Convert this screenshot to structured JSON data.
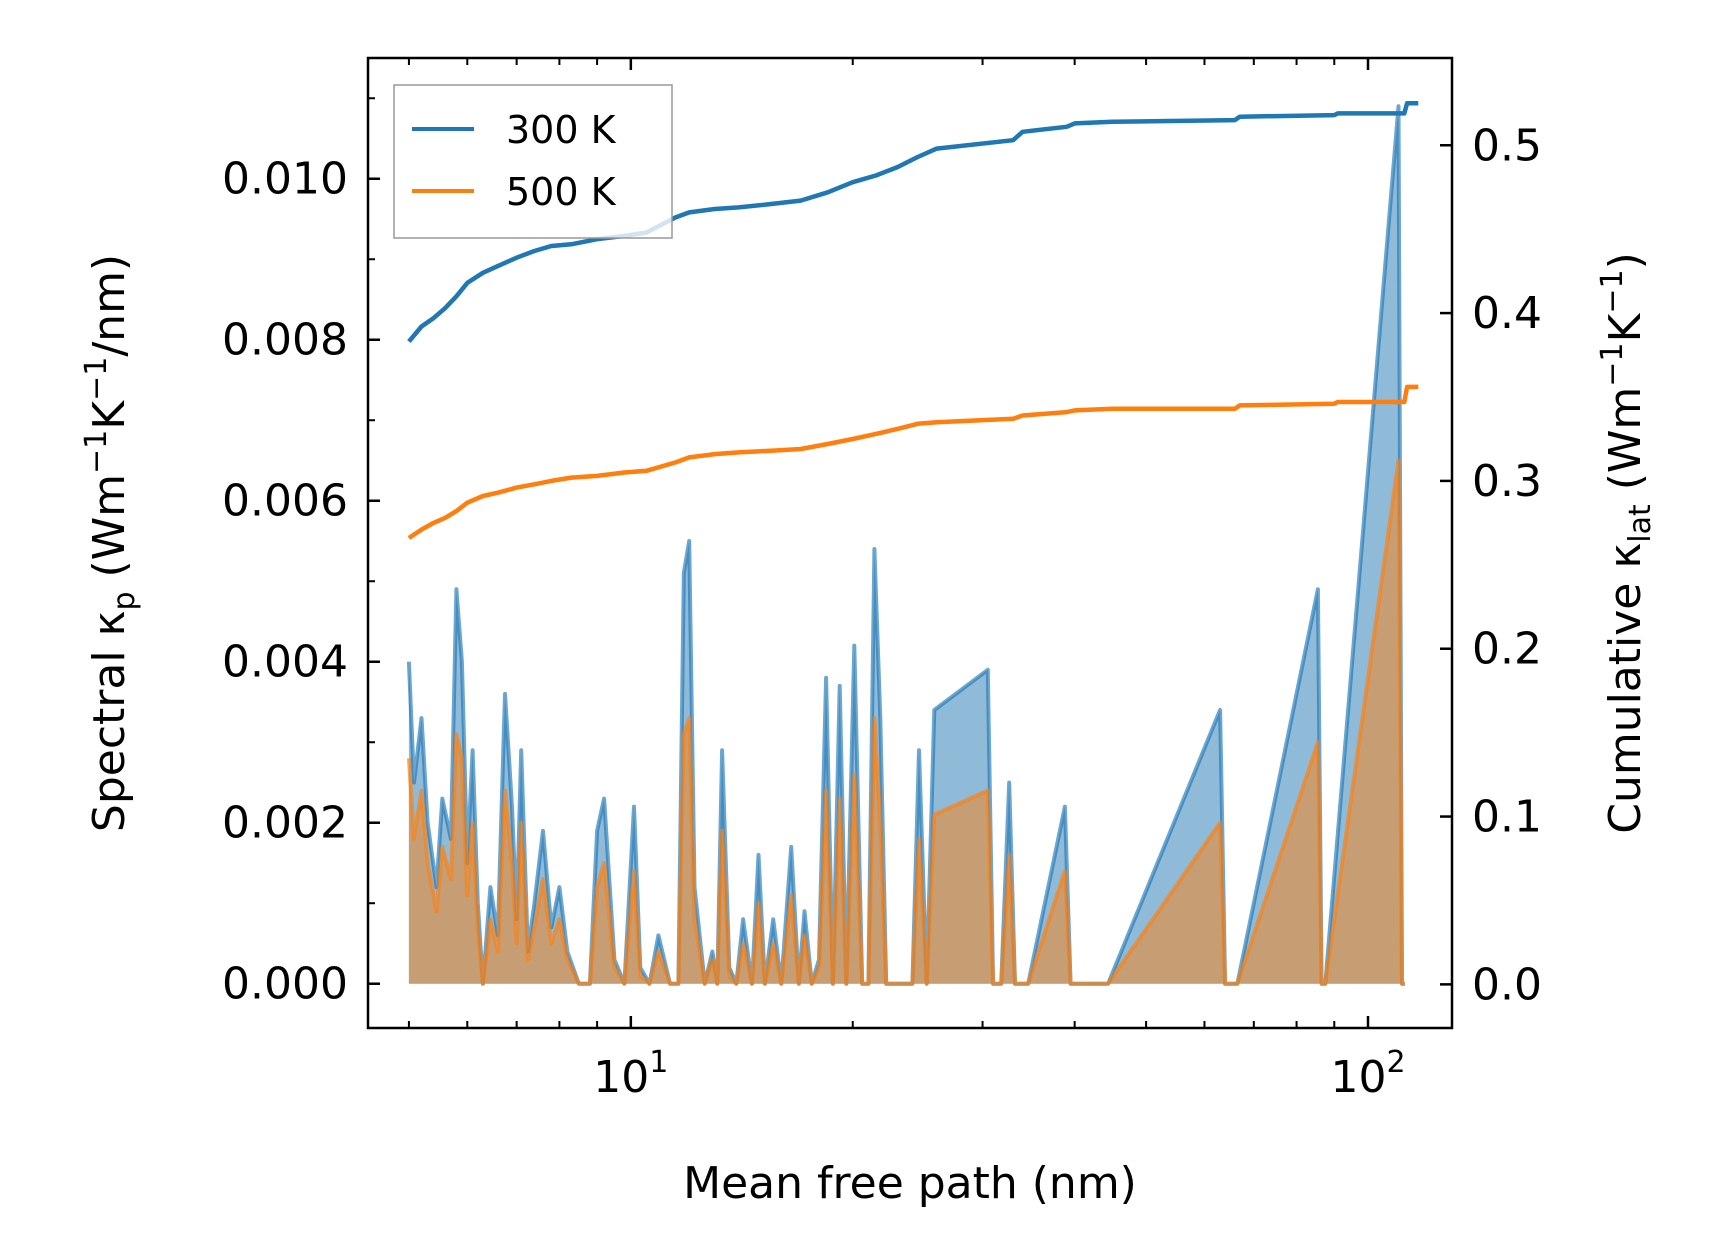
{
  "chart_data": {
    "type": "line",
    "xscale": "log",
    "xlabel": "Mean free path (nm)",
    "xlim": [
      4.4,
      130
    ],
    "x_ticks": [
      {
        "value": 10,
        "base": "10",
        "exp": "1"
      },
      {
        "value": 100,
        "base": "10",
        "exp": "2"
      }
    ],
    "ylabel_left": {
      "pre": "Spectral κ",
      "sub": "p",
      "mid": " (Wm",
      "sup1": "−1",
      "k": "K",
      "sup2": "−1",
      "post": "/nm)"
    },
    "ylim_left": [
      -0.00055,
      0.0115
    ],
    "yticks_left": [
      {
        "value": 0.0,
        "label": "0.000"
      },
      {
        "value": 0.002,
        "label": "0.002"
      },
      {
        "value": 0.004,
        "label": "0.004"
      },
      {
        "value": 0.006,
        "label": "0.006"
      },
      {
        "value": 0.008,
        "label": "0.008"
      },
      {
        "value": 0.01,
        "label": "0.010"
      }
    ],
    "ylabel_right": {
      "pre": "Cumulative κ",
      "sub": "lat",
      "mid": " (Wm",
      "sup1": "−1",
      "k": "K",
      "sup2": "−1",
      "post": ")"
    },
    "ylim_right": [
      -0.026,
      0.552
    ],
    "yticks_right": [
      {
        "value": 0.0,
        "label": "0.0"
      },
      {
        "value": 0.1,
        "label": "0.1"
      },
      {
        "value": 0.2,
        "label": "0.2"
      },
      {
        "value": 0.3,
        "label": "0.3"
      },
      {
        "value": 0.4,
        "label": "0.4"
      },
      {
        "value": 0.5,
        "label": "0.5"
      }
    ],
    "legend": {
      "position": "upper-left",
      "entries": [
        "300 K",
        "500 K"
      ]
    },
    "series": [
      {
        "name": "300 K",
        "color": "#1f77b4",
        "cumulative": {
          "x": [
            5.0,
            5.2,
            5.4,
            5.6,
            5.8,
            6.0,
            6.3,
            6.6,
            7.0,
            7.4,
            7.8,
            8.3,
            9.0,
            9.8,
            10.5,
            11.5,
            12.0,
            13.0,
            14.0,
            15.5,
            17.0,
            18.5,
            20.0,
            21.5,
            23.0,
            24.5,
            26.0,
            33.0,
            34.0,
            39.0,
            40.0,
            45.0,
            66.0,
            67.0,
            90.0,
            91.0,
            112.0,
            113.0,
            117.0
          ],
          "y": [
            0.383,
            0.392,
            0.397,
            0.403,
            0.41,
            0.418,
            0.424,
            0.428,
            0.433,
            0.437,
            0.44,
            0.441,
            0.444,
            0.446,
            0.448,
            0.457,
            0.46,
            0.462,
            0.463,
            0.465,
            0.467,
            0.472,
            0.478,
            0.482,
            0.487,
            0.493,
            0.498,
            0.503,
            0.508,
            0.511,
            0.513,
            0.514,
            0.515,
            0.517,
            0.518,
            0.519,
            0.519,
            0.525,
            0.525
          ]
        },
        "spectral": {
          "x": [
            5.0,
            5.08,
            5.2,
            5.3,
            5.45,
            5.55,
            5.7,
            5.8,
            5.9,
            6.0,
            6.1,
            6.2,
            6.3,
            6.45,
            6.6,
            6.75,
            6.9,
            7.0,
            7.1,
            7.25,
            7.4,
            7.6,
            7.8,
            8.0,
            8.2,
            8.5,
            8.8,
            9.0,
            9.2,
            9.5,
            9.8,
            10.1,
            10.3,
            10.6,
            10.9,
            11.3,
            11.6,
            11.8,
            12.0,
            12.2,
            12.6,
            12.9,
            13.1,
            13.3,
            13.6,
            13.9,
            14.2,
            14.6,
            14.9,
            15.2,
            15.6,
            16.0,
            16.5,
            16.9,
            17.2,
            17.6,
            18.0,
            18.4,
            18.8,
            19.2,
            19.6,
            20.1,
            20.6,
            21.0,
            21.4,
            21.8,
            22.2,
            22.6,
            23.0,
            23.6,
            24.1,
            24.6,
            25.2,
            25.8,
            30.5,
            31.0,
            31.8,
            32.6,
            33.2,
            33.8,
            34.6,
            38.8,
            39.5,
            40.4,
            42.8,
            43.5,
            44.4,
            63.0,
            64.0,
            65.0,
            66.5,
            85.5,
            86.5,
            87.5,
            110.0,
            111.2,
            112.2
          ],
          "y": [
            0.004,
            0.0025,
            0.0033,
            0.002,
            0.0012,
            0.0023,
            0.0018,
            0.0049,
            0.004,
            0.0015,
            0.0029,
            0.001,
            0.0,
            0.0012,
            0.0006,
            0.0036,
            0.0022,
            0.0008,
            0.0029,
            0.0004,
            0.001,
            0.0019,
            0.0007,
            0.0012,
            0.0004,
            0.0,
            0.0,
            0.0019,
            0.0023,
            0.0003,
            0.0,
            0.0022,
            0.0002,
            0.0,
            0.0006,
            0.0,
            0.0,
            0.0051,
            0.0055,
            0.0012,
            0.0,
            0.0004,
            0.0,
            0.0029,
            0.0002,
            0.0,
            0.0008,
            0.0,
            0.0016,
            0.0,
            0.0008,
            0.0,
            0.0017,
            0.0,
            0.0009,
            0.0,
            0.0003,
            0.0038,
            0.0,
            0.0037,
            0.0,
            0.0042,
            0.0,
            0.0,
            0.0054,
            0.0033,
            0.0,
            0.0,
            0.0,
            0.0,
            0.0,
            0.0029,
            0.0,
            0.0034,
            0.0039,
            0.0,
            0.0,
            0.0025,
            0.0,
            0.0,
            0.0,
            0.0022,
            0.0,
            0.0,
            0.0,
            0.0,
            0.0,
            0.0034,
            0.0,
            0.0,
            0.0,
            0.0049,
            0.0,
            0.0,
            0.0109,
            0.0,
            0.0
          ]
        }
      },
      {
        "name": "500 K",
        "color": "#ff7f0e",
        "cumulative": {
          "x": [
            5.0,
            5.2,
            5.4,
            5.6,
            5.8,
            6.0,
            6.3,
            6.6,
            7.0,
            7.4,
            7.8,
            8.3,
            9.0,
            9.8,
            10.5,
            11.5,
            12.0,
            13.0,
            14.0,
            15.5,
            17.0,
            18.5,
            20.0,
            21.5,
            23.0,
            24.5,
            26.0,
            33.0,
            34.0,
            39.0,
            40.0,
            45.0,
            66.0,
            67.0,
            90.0,
            91.0,
            112.0,
            113.0,
            117.0
          ],
          "y": [
            0.266,
            0.271,
            0.275,
            0.278,
            0.282,
            0.287,
            0.291,
            0.293,
            0.296,
            0.298,
            0.3,
            0.302,
            0.303,
            0.305,
            0.306,
            0.311,
            0.314,
            0.316,
            0.317,
            0.318,
            0.319,
            0.322,
            0.325,
            0.328,
            0.331,
            0.334,
            0.335,
            0.337,
            0.339,
            0.341,
            0.342,
            0.343,
            0.343,
            0.345,
            0.346,
            0.347,
            0.347,
            0.356,
            0.356
          ]
        },
        "spectral": {
          "x": [
            5.0,
            5.08,
            5.2,
            5.3,
            5.45,
            5.55,
            5.7,
            5.8,
            5.9,
            6.0,
            6.1,
            6.2,
            6.3,
            6.45,
            6.6,
            6.75,
            6.9,
            7.0,
            7.1,
            7.25,
            7.4,
            7.6,
            7.8,
            8.0,
            8.2,
            8.5,
            8.8,
            9.0,
            9.2,
            9.5,
            9.8,
            10.1,
            10.3,
            10.6,
            10.9,
            11.3,
            11.6,
            11.8,
            12.0,
            12.2,
            12.6,
            12.9,
            13.1,
            13.3,
            13.6,
            13.9,
            14.2,
            14.6,
            14.9,
            15.2,
            15.6,
            16.0,
            16.5,
            16.9,
            17.2,
            17.6,
            18.0,
            18.4,
            18.8,
            19.2,
            19.6,
            20.1,
            20.6,
            21.0,
            21.4,
            21.8,
            22.2,
            22.6,
            23.0,
            23.6,
            24.1,
            24.6,
            25.2,
            25.8,
            30.5,
            31.0,
            31.8,
            32.6,
            33.2,
            33.8,
            34.6,
            38.8,
            39.5,
            40.4,
            42.8,
            43.5,
            44.4,
            63.0,
            64.0,
            65.0,
            66.5,
            85.5,
            86.5,
            87.5,
            110.0,
            111.2,
            112.2
          ],
          "y": [
            0.0028,
            0.0018,
            0.0024,
            0.0015,
            0.0009,
            0.0017,
            0.0013,
            0.0031,
            0.0028,
            0.0011,
            0.002,
            0.0007,
            0.0,
            0.0008,
            0.0004,
            0.0024,
            0.0015,
            0.0005,
            0.002,
            0.0003,
            0.0007,
            0.0013,
            0.0005,
            0.0008,
            0.0003,
            0.0,
            0.0,
            0.0012,
            0.0015,
            0.0002,
            0.0,
            0.0014,
            0.0001,
            0.0,
            0.0004,
            0.0,
            0.0,
            0.0031,
            0.0033,
            0.0008,
            0.0,
            0.0003,
            0.0,
            0.0019,
            0.0001,
            0.0,
            0.0005,
            0.0,
            0.001,
            0.0,
            0.0005,
            0.0,
            0.0011,
            0.0,
            0.0006,
            0.0,
            0.0002,
            0.0024,
            0.0,
            0.0023,
            0.0,
            0.0026,
            0.0,
            0.0,
            0.0033,
            0.002,
            0.0,
            0.0,
            0.0,
            0.0,
            0.0,
            0.0018,
            0.0,
            0.0021,
            0.0024,
            0.0,
            0.0,
            0.0016,
            0.0,
            0.0,
            0.0,
            0.0014,
            0.0,
            0.0,
            0.0,
            0.0,
            0.0,
            0.002,
            0.0,
            0.0,
            0.0,
            0.003,
            0.0,
            0.0,
            0.0065,
            0.0,
            0.0
          ]
        }
      }
    ]
  }
}
